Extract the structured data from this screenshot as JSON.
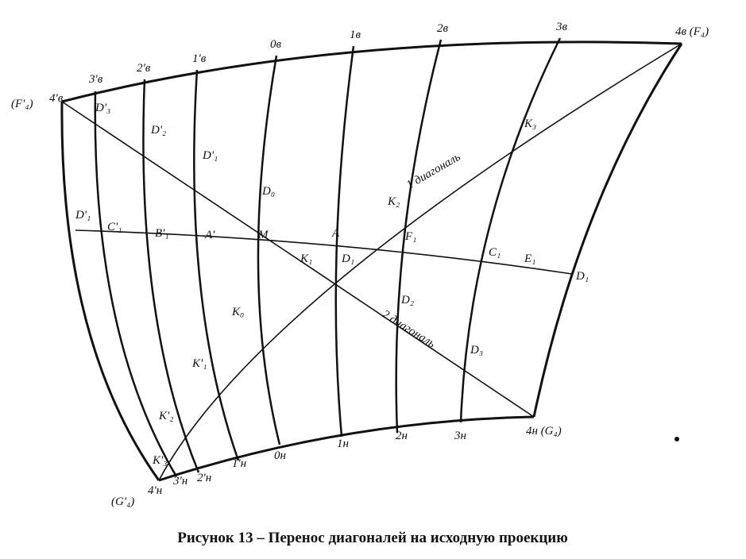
{
  "figure": {
    "labels": [
      "4'в",
      "3'в",
      "2'в",
      "1'в",
      "0в",
      "1в",
      "2в",
      "3в",
      "4в (F₄)",
      "(F'₄)",
      "D'₃",
      "D'₂",
      "D'₁",
      "D₀",
      "D'₁",
      "C'₁",
      "B'₁",
      "A'",
      "M",
      "A",
      "F₁",
      "C₁",
      "E₁",
      "D₁",
      "K₁",
      "D₁",
      "K₂",
      "K₃",
      "K₀",
      "K'₁",
      "K'₂",
      "K'₃",
      "D₂",
      "D₃",
      "1 диагональ",
      "2 диагональ",
      "4н (G₄)",
      "3н",
      "2н",
      "1н",
      "0н",
      "1'н",
      "2'н",
      "3'н",
      "4'н",
      "(G'₄)"
    ],
    "caption": "Рисунок 13 – Перенос диагоналей на исходную проекцию"
  }
}
